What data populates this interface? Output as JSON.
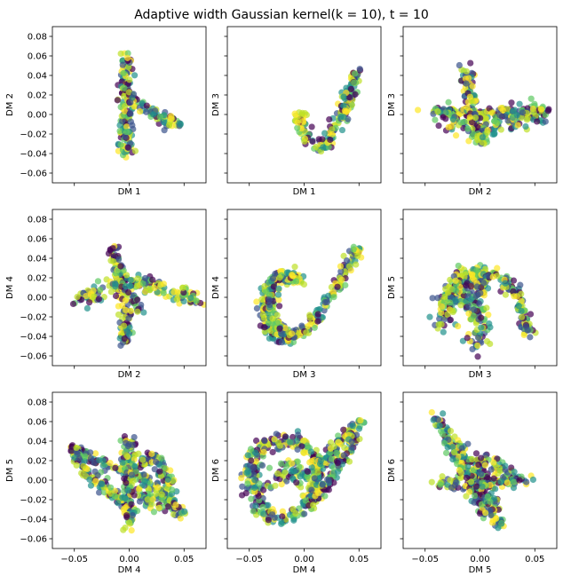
{
  "figure": {
    "title": "Adaptive width Gaussian kernel(k = 10), t = 10"
  },
  "colors": {
    "viridis": [
      "#440154",
      "#3b528b",
      "#21918c",
      "#5ec962",
      "#bddf26",
      "#fde725"
    ],
    "axes": "#000000"
  },
  "chart_data": [
    {
      "type": "scatter",
      "panel": 1,
      "xlabel": "DM 1",
      "ylabel": "DM 2",
      "xlim": [
        -0.07,
        0.07
      ],
      "ylim": [
        -0.07,
        0.09
      ],
      "xticks": [
        -0.05,
        0.0,
        0.05
      ],
      "yticks": [
        -0.06,
        -0.04,
        -0.02,
        0.0,
        0.02,
        0.04,
        0.06,
        0.08
      ],
      "xtick_labels_shown": false,
      "ytick_labels_shown": true,
      "curves": [
        {
          "points": [
            [
              -0.003,
              0.063
            ],
            [
              -0.003,
              0.03
            ],
            [
              -0.003,
              0.0
            ],
            [
              -0.003,
              -0.02
            ],
            [
              -0.003,
              -0.042
            ]
          ],
          "spread": 0.003
        },
        {
          "points": [
            [
              -0.003,
              0.02
            ],
            [
              0.01,
              0.01
            ],
            [
              0.025,
              0.0
            ],
            [
              0.045,
              -0.012
            ]
          ],
          "spread": 0.003
        }
      ]
    },
    {
      "type": "scatter",
      "panel": 2,
      "xlabel": "DM 1",
      "ylabel": "DM 3",
      "xlim": [
        -0.07,
        0.07
      ],
      "ylim": [
        -0.07,
        0.09
      ],
      "xticks": [
        -0.05,
        0.0,
        0.05
      ],
      "yticks": [
        -0.06,
        -0.04,
        -0.02,
        0.0,
        0.02,
        0.04,
        0.06,
        0.08
      ],
      "xtick_labels_shown": false,
      "ytick_labels_shown": false,
      "curves": [
        {
          "points": [
            [
              -0.003,
              0.003
            ],
            [
              -0.002,
              -0.015
            ],
            [
              0.005,
              -0.03
            ],
            [
              0.013,
              -0.034
            ],
            [
              0.02,
              -0.03
            ],
            [
              0.03,
              -0.01
            ],
            [
              0.04,
              0.015
            ],
            [
              0.048,
              0.045
            ]
          ],
          "spread": 0.003
        }
      ]
    },
    {
      "type": "scatter",
      "panel": 3,
      "xlabel": "DM 2",
      "ylabel": "DM 3",
      "xlim": [
        -0.07,
        0.07
      ],
      "ylim": [
        -0.07,
        0.09
      ],
      "xticks": [
        -0.05,
        0.0,
        0.05
      ],
      "yticks": [
        -0.06,
        -0.04,
        -0.02,
        0.0,
        0.02,
        0.04,
        0.06,
        0.08
      ],
      "xtick_labels_shown": false,
      "ytick_labels_shown": false,
      "curves": [
        {
          "points": [
            [
              -0.04,
              0.003
            ],
            [
              0.0,
              0.0
            ],
            [
              0.03,
              0.002
            ],
            [
              0.062,
              0.004
            ]
          ],
          "spread": 0.003
        },
        {
          "points": [
            [
              -0.012,
              0.046
            ],
            [
              -0.01,
              0.02
            ],
            [
              -0.005,
              0.0
            ],
            [
              0.0,
              -0.025
            ],
            [
              0.005,
              -0.03
            ]
          ],
          "spread": 0.003
        },
        {
          "points": [
            [
              -0.04,
              0.0
            ],
            [
              -0.02,
              -0.005
            ],
            [
              0.0,
              -0.02
            ],
            [
              0.02,
              -0.01
            ],
            [
              0.055,
              0.002
            ]
          ],
          "spread": 0.006
        }
      ]
    },
    {
      "type": "scatter",
      "panel": 4,
      "xlabel": "DM 2",
      "ylabel": "DM 4",
      "xlim": [
        -0.07,
        0.07
      ],
      "ylim": [
        -0.07,
        0.09
      ],
      "xticks": [
        -0.05,
        0.0,
        0.05
      ],
      "yticks": [
        -0.06,
        -0.04,
        -0.02,
        0.0,
        0.02,
        0.04,
        0.06,
        0.08
      ],
      "xtick_labels_shown": false,
      "ytick_labels_shown": true,
      "curves": [
        {
          "points": [
            [
              -0.045,
              -0.003
            ],
            [
              -0.02,
              0.01
            ],
            [
              0.0,
              0.02
            ],
            [
              0.03,
              0.01
            ],
            [
              0.062,
              -0.003
            ]
          ],
          "spread": 0.004
        },
        {
          "points": [
            [
              -0.014,
              0.052
            ],
            [
              -0.01,
              0.02
            ],
            [
              -0.005,
              0.0
            ],
            [
              -0.003,
              -0.02
            ],
            [
              -0.005,
              -0.05
            ]
          ],
          "spread": 0.003
        },
        {
          "points": [
            [
              0.0,
              0.01
            ],
            [
              0.005,
              -0.005
            ],
            [
              0.008,
              -0.015
            ]
          ],
          "spread": 0.004
        }
      ]
    },
    {
      "type": "scatter",
      "panel": 5,
      "xlabel": "DM 3",
      "ylabel": "DM 4",
      "xlim": [
        -0.07,
        0.07
      ],
      "ylim": [
        -0.07,
        0.09
      ],
      "xticks": [
        -0.05,
        0.0,
        0.05
      ],
      "yticks": [
        -0.06,
        -0.04,
        -0.02,
        0.0,
        0.02,
        0.04,
        0.06,
        0.08
      ],
      "xtick_labels_shown": false,
      "ytick_labels_shown": false,
      "curves": [
        {
          "points": [
            [
              0.0,
              0.018
            ],
            [
              -0.01,
              0.02
            ],
            [
              -0.025,
              0.02
            ],
            [
              -0.035,
              0.0
            ],
            [
              -0.035,
              -0.03
            ],
            [
              -0.015,
              -0.045
            ],
            [
              0.005,
              -0.03
            ],
            [
              0.02,
              -0.005
            ],
            [
              0.035,
              0.02
            ],
            [
              0.05,
              0.052
            ]
          ],
          "spread": 0.003
        },
        {
          "points": [
            [
              -0.01,
              0.02
            ],
            [
              -0.02,
              0.025
            ],
            [
              -0.03,
              0.015
            ],
            [
              -0.03,
              -0.02
            ],
            [
              -0.012,
              -0.04
            ]
          ],
          "spread": 0.003
        }
      ]
    },
    {
      "type": "scatter",
      "panel": 6,
      "xlabel": "DM 3",
      "ylabel": "DM 5",
      "xlim": [
        -0.07,
        0.07
      ],
      "ylim": [
        -0.07,
        0.09
      ],
      "xticks": [
        -0.05,
        0.0,
        0.05
      ],
      "yticks": [
        -0.06,
        -0.04,
        -0.02,
        0.0,
        0.02,
        0.04,
        0.06,
        0.08
      ],
      "xtick_labels_shown": false,
      "ytick_labels_shown": false,
      "curves": [
        {
          "points": [
            [
              -0.035,
              -0.03
            ],
            [
              -0.03,
              0.0
            ],
            [
              -0.02,
              0.02
            ],
            [
              -0.01,
              0.025
            ],
            [
              0.0,
              0.01
            ],
            [
              0.0,
              -0.02
            ],
            [
              0.0,
              -0.052
            ]
          ],
          "spread": 0.005
        },
        {
          "points": [
            [
              0.0,
              0.02
            ],
            [
              0.0,
              0.03
            ],
            [
              0.0,
              0.01
            ]
          ],
          "spread": 0.004
        },
        {
          "points": [
            [
              0.0,
              0.01
            ],
            [
              0.01,
              0.025
            ],
            [
              0.02,
              0.02
            ],
            [
              0.035,
              0.0
            ],
            [
              0.045,
              -0.038
            ]
          ],
          "spread": 0.003
        },
        {
          "points": [
            [
              -0.03,
              -0.02
            ],
            [
              -0.02,
              0.01
            ],
            [
              -0.008,
              0.0
            ],
            [
              -0.005,
              -0.02
            ]
          ],
          "spread": 0.005
        }
      ]
    },
    {
      "type": "scatter",
      "panel": 7,
      "xlabel": "DM 4",
      "ylabel": "DM 5",
      "xlim": [
        -0.07,
        0.07
      ],
      "ylim": [
        -0.07,
        0.09
      ],
      "xticks": [
        -0.05,
        0.0,
        0.05
      ],
      "yticks": [
        -0.06,
        -0.04,
        -0.02,
        0.0,
        0.02,
        0.04,
        0.06,
        0.08
      ],
      "xtick_labels_shown": true,
      "ytick_labels_shown": true,
      "curves": [
        {
          "points": [
            [
              -0.052,
              0.032
            ],
            [
              -0.03,
              0.02
            ],
            [
              -0.01,
              0.012
            ],
            [
              0.01,
              0.005
            ],
            [
              0.03,
              -0.015
            ],
            [
              0.05,
              -0.038
            ]
          ],
          "spread": 0.003
        },
        {
          "points": [
            [
              -0.05,
              0.03
            ],
            [
              -0.04,
              0.01
            ],
            [
              -0.02,
              -0.01
            ],
            [
              0.0,
              -0.028
            ]
          ],
          "spread": 0.003
        },
        {
          "points": [
            [
              0.0,
              0.043
            ],
            [
              0.0,
              0.02
            ],
            [
              0.0,
              0.0
            ],
            [
              0.0,
              -0.03
            ],
            [
              0.0,
              -0.052
            ]
          ],
          "spread": 0.003
        },
        {
          "points": [
            [
              0.008,
              0.01
            ],
            [
              0.02,
              0.025
            ],
            [
              0.03,
              0.01
            ],
            [
              0.04,
              -0.01
            ]
          ],
          "spread": 0.003
        },
        {
          "points": [
            [
              0.005,
              -0.005
            ],
            [
              0.015,
              -0.02
            ],
            [
              0.025,
              -0.03
            ]
          ],
          "spread": 0.005
        }
      ]
    },
    {
      "type": "scatter",
      "panel": 8,
      "xlabel": "DM 4",
      "ylabel": "DM 6",
      "xlim": [
        -0.07,
        0.07
      ],
      "ylim": [
        -0.07,
        0.09
      ],
      "xticks": [
        -0.05,
        0.0,
        0.05
      ],
      "yticks": [
        -0.06,
        -0.04,
        -0.02,
        0.0,
        0.02,
        0.04,
        0.06,
        0.08
      ],
      "xtick_labels_shown": true,
      "ytick_labels_shown": false,
      "curves": [
        {
          "points": [
            [
              -0.05,
              0.0
            ],
            [
              -0.045,
              0.025
            ],
            [
              -0.03,
              0.04
            ],
            [
              -0.01,
              0.04
            ],
            [
              0.0,
              0.035
            ],
            [
              0.015,
              0.015
            ],
            [
              0.01,
              -0.01
            ],
            [
              0.0,
              -0.03
            ],
            [
              -0.02,
              -0.04
            ],
            [
              -0.04,
              -0.03
            ],
            [
              -0.05,
              0.0
            ]
          ],
          "spread": 0.004
        },
        {
          "points": [
            [
              -0.03,
              0.0
            ],
            [
              -0.02,
              0.015
            ],
            [
              0.0,
              0.01
            ],
            [
              0.005,
              -0.005
            ]
          ],
          "spread": 0.008
        },
        {
          "points": [
            [
              0.015,
              0.015
            ],
            [
              0.03,
              0.035
            ],
            [
              0.045,
              0.055
            ],
            [
              0.052,
              0.064
            ]
          ],
          "spread": 0.003
        },
        {
          "points": [
            [
              0.005,
              -0.025
            ],
            [
              0.02,
              -0.005
            ],
            [
              0.035,
              0.02
            ],
            [
              0.045,
              0.045
            ]
          ],
          "spread": 0.003
        }
      ]
    },
    {
      "type": "scatter",
      "panel": 9,
      "xlabel": "DM 5",
      "ylabel": "DM 6",
      "xlim": [
        -0.07,
        0.07
      ],
      "ylim": [
        -0.07,
        0.09
      ],
      "xticks": [
        -0.05,
        0.0,
        0.05
      ],
      "yticks": [
        -0.06,
        -0.04,
        -0.02,
        0.0,
        0.02,
        0.04,
        0.06,
        0.08
      ],
      "xtick_labels_shown": true,
      "ytick_labels_shown": false,
      "curves": [
        {
          "points": [
            [
              -0.04,
              -0.004
            ],
            [
              -0.02,
              -0.003
            ],
            [
              0.0,
              -0.002
            ],
            [
              0.02,
              -0.001
            ],
            [
              0.045,
              0.0
            ]
          ],
          "spread": 0.003
        },
        {
          "points": [
            [
              -0.04,
              0.063
            ],
            [
              -0.03,
              0.045
            ],
            [
              -0.015,
              0.025
            ],
            [
              0.0,
              0.005
            ],
            [
              0.01,
              -0.015
            ],
            [
              0.015,
              -0.035
            ],
            [
              0.018,
              -0.046
            ]
          ],
          "spread": 0.004
        },
        {
          "points": [
            [
              -0.025,
              0.03
            ],
            [
              -0.01,
              0.01
            ],
            [
              0.0,
              -0.02
            ],
            [
              0.012,
              -0.04
            ]
          ],
          "spread": 0.005
        },
        {
          "points": [
            [
              0.0,
              0.02
            ],
            [
              0.015,
              0.015
            ],
            [
              0.025,
              0.005
            ]
          ],
          "spread": 0.005
        }
      ]
    }
  ]
}
